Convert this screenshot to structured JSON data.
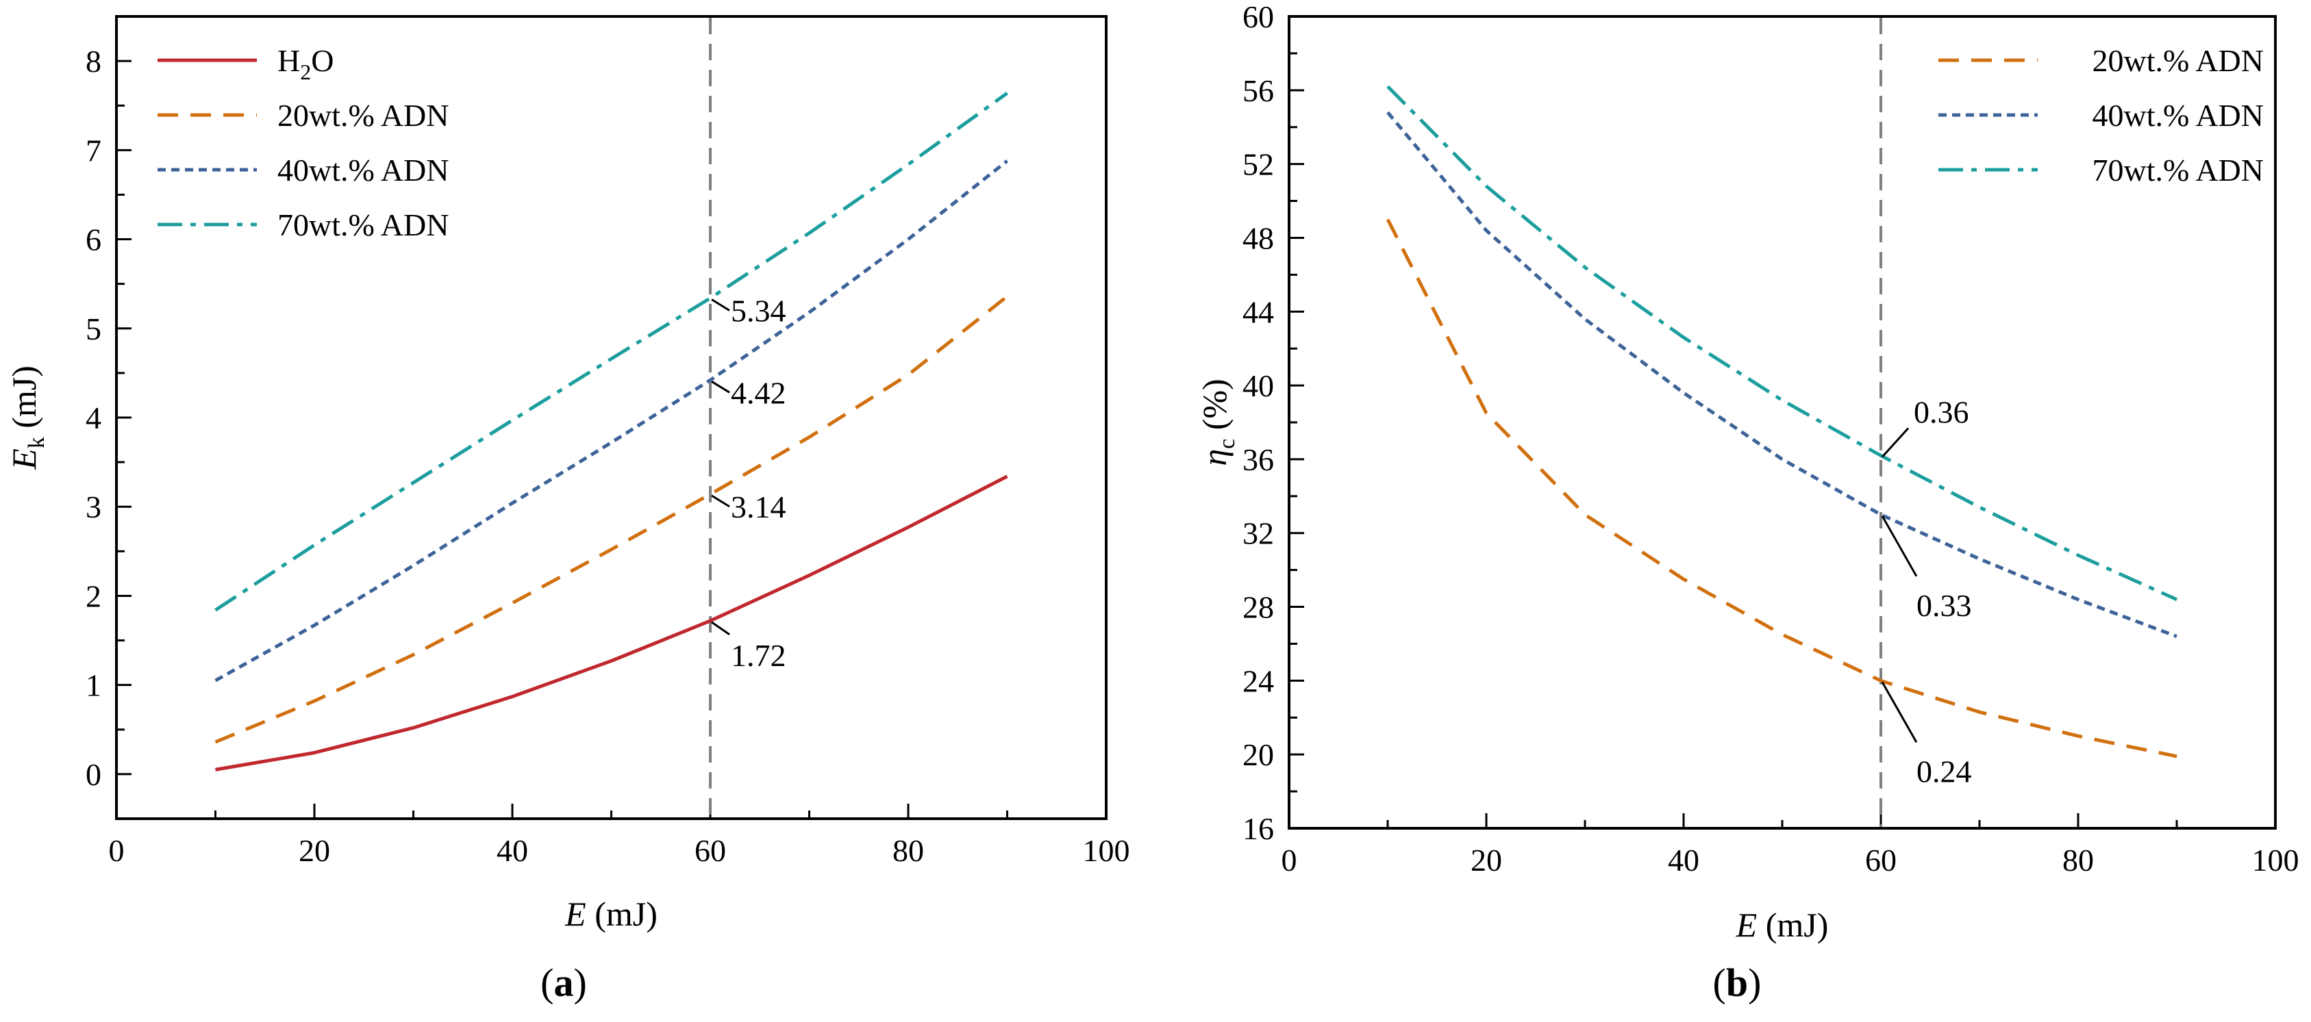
{
  "chart_data": [
    {
      "type": "line",
      "panel_label": "(a)",
      "panel_label_letter": "a",
      "xlabel": "E (mJ)",
      "xlabel_parts": {
        "var": "E",
        "unit": " (mJ)"
      },
      "ylabel": "Ek (mJ)",
      "ylabel_parts": {
        "var": "E",
        "sub": "k",
        "unit": " (mJ)"
      },
      "xlim": [
        0,
        100
      ],
      "ylim": [
        -0.5,
        8.5
      ],
      "xticks": [
        0,
        20,
        40,
        60,
        80,
        100
      ],
      "yticks": [
        0,
        1,
        2,
        3,
        4,
        5,
        6,
        7,
        8
      ],
      "x_minor_step": 10,
      "y_minor_step": 0.5,
      "vline_x": 60,
      "legend_position": "top-left",
      "series": [
        {
          "name": "H2O",
          "name_parts": {
            "a": "H",
            "sub": "2",
            "b": "O"
          },
          "color": "#c0282d",
          "dash": "solid",
          "x": [
            10,
            20,
            30,
            40,
            50,
            60,
            70,
            80,
            90
          ],
          "y": [
            0.05,
            0.24,
            0.52,
            0.87,
            1.27,
            1.72,
            2.23,
            2.77,
            3.34
          ]
        },
        {
          "name": "20wt.% ADN",
          "color": "#d1700f",
          "dash": "dashed",
          "x": [
            10,
            20,
            30,
            40,
            50,
            60,
            70,
            80,
            90
          ],
          "y": [
            0.36,
            0.82,
            1.34,
            1.92,
            2.52,
            3.14,
            3.78,
            4.48,
            5.36
          ]
        },
        {
          "name": "40wt.% ADN",
          "color": "#3d6399",
          "dash": "dotted",
          "x": [
            10,
            20,
            30,
            40,
            50,
            60,
            70,
            80,
            90
          ],
          "y": [
            1.05,
            1.67,
            2.34,
            3.04,
            3.72,
            4.42,
            5.18,
            6.0,
            6.88
          ]
        },
        {
          "name": "70wt.% ADN",
          "color": "#1d9e9e",
          "dash": "dashdot",
          "x": [
            10,
            20,
            30,
            40,
            50,
            60,
            70,
            80,
            90
          ],
          "y": [
            1.84,
            2.57,
            3.27,
            3.97,
            4.66,
            5.34,
            6.07,
            6.84,
            7.64
          ]
        }
      ],
      "annotations": [
        {
          "text": "5.34",
          "x": 60,
          "y": 5.34
        },
        {
          "text": "4.42",
          "x": 60,
          "y": 4.42
        },
        {
          "text": "3.14",
          "x": 60,
          "y": 3.14
        },
        {
          "text": "1.72",
          "x": 60,
          "y": 1.72
        }
      ]
    },
    {
      "type": "line",
      "panel_label": "(b)",
      "panel_label_letter": "b",
      "xlabel": "E (mJ)",
      "xlabel_parts": {
        "var": "E",
        "unit": " (mJ)"
      },
      "ylabel": "ηc (%)",
      "ylabel_parts": {
        "var": "η",
        "sub": "c",
        "unit": " (%)"
      },
      "xlim": [
        0,
        100
      ],
      "ylim": [
        16,
        60
      ],
      "xticks": [
        0,
        20,
        40,
        60,
        80,
        100
      ],
      "yticks": [
        16,
        20,
        24,
        28,
        32,
        36,
        40,
        44,
        48,
        52,
        56,
        60
      ],
      "x_minor_step": 10,
      "y_minor_step": 2,
      "vline_x": 60,
      "legend_position": "top-right",
      "series": [
        {
          "name": "20wt.% ADN",
          "color": "#d1700f",
          "dash": "dashed",
          "x": [
            10,
            20,
            30,
            40,
            50,
            60,
            70,
            80,
            90
          ],
          "y": [
            49.0,
            38.5,
            33.0,
            29.5,
            26.5,
            24.0,
            22.3,
            21.0,
            19.9
          ]
        },
        {
          "name": "40wt.% ADN",
          "color": "#3d6399",
          "dash": "dotted",
          "x": [
            10,
            20,
            30,
            40,
            50,
            60,
            70,
            80,
            90
          ],
          "y": [
            54.8,
            48.4,
            43.6,
            39.6,
            36.0,
            33.0,
            30.6,
            28.4,
            26.4
          ]
        },
        {
          "name": "70wt.% ADN",
          "color": "#1d9e9e",
          "dash": "dashdot",
          "x": [
            10,
            20,
            30,
            40,
            50,
            60,
            70,
            80,
            90
          ],
          "y": [
            56.2,
            50.8,
            46.4,
            42.6,
            39.2,
            36.2,
            33.4,
            30.8,
            28.4
          ]
        }
      ],
      "annotations": [
        {
          "text": "0.36",
          "x": 60,
          "y": 36.2
        },
        {
          "text": "0.33",
          "x": 60,
          "y": 33.0
        },
        {
          "text": "0.24",
          "x": 60,
          "y": 24.0
        }
      ]
    }
  ]
}
